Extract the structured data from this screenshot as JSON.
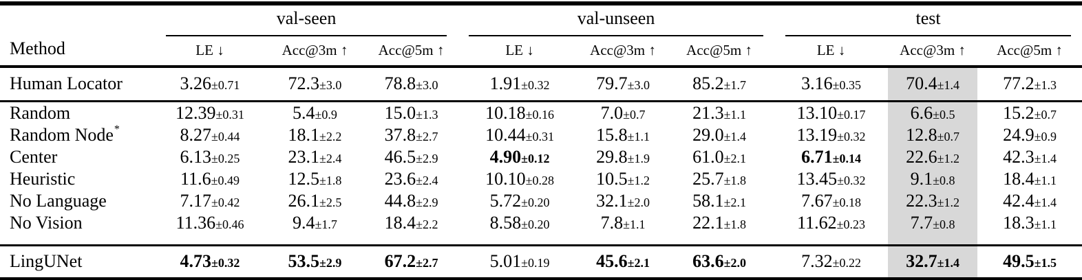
{
  "page": {
    "background_color": "#ffffff",
    "text_color": "#000000",
    "highlight_color": "#d8d8d8"
  },
  "table": {
    "method_header": "Method",
    "groups": [
      {
        "label": "val-seen",
        "columns": [
          "LE ↓",
          "Acc@3m ↑",
          "Acc@5m ↑"
        ]
      },
      {
        "label": "val-unseen",
        "columns": [
          "LE ↓",
          "Acc@3m ↑",
          "Acc@5m ↑"
        ]
      },
      {
        "label": "test",
        "columns": [
          "LE ↓",
          "Acc@3m ↑",
          "Acc@5m ↑"
        ]
      }
    ],
    "highlighted_column_index": 7,
    "sections": [
      {
        "rows": [
          {
            "method": "Human Locator",
            "sup": "",
            "cells": [
              {
                "v": "3.26",
                "pm": "±0.71",
                "bold": false
              },
              {
                "v": "72.3",
                "pm": "±3.0",
                "bold": false
              },
              {
                "v": "78.8",
                "pm": "±3.0",
                "bold": false
              },
              {
                "v": "1.91",
                "pm": "±0.32",
                "bold": false
              },
              {
                "v": "79.7",
                "pm": "±3.0",
                "bold": false
              },
              {
                "v": "85.2",
                "pm": "±1.7",
                "bold": false
              },
              {
                "v": "3.16",
                "pm": "±0.35",
                "bold": false
              },
              {
                "v": "70.4",
                "pm": "±1.4",
                "bold": false
              },
              {
                "v": "77.2",
                "pm": "±1.3",
                "bold": false
              }
            ]
          }
        ]
      },
      {
        "rows": [
          {
            "method": "Random",
            "sup": "",
            "cells": [
              {
                "v": "12.39",
                "pm": "±0.31",
                "bold": false
              },
              {
                "v": "5.4",
                "pm": "±0.9",
                "bold": false
              },
              {
                "v": "15.0",
                "pm": "±1.3",
                "bold": false
              },
              {
                "v": "10.18",
                "pm": "±0.16",
                "bold": false
              },
              {
                "v": "7.0",
                "pm": "±0.7",
                "bold": false
              },
              {
                "v": "21.3",
                "pm": "±1.1",
                "bold": false
              },
              {
                "v": "13.10",
                "pm": "±0.17",
                "bold": false
              },
              {
                "v": "6.6",
                "pm": "±0.5",
                "bold": false
              },
              {
                "v": "15.2",
                "pm": "±0.7",
                "bold": false
              }
            ]
          },
          {
            "method": "Random Node",
            "sup": "*",
            "cells": [
              {
                "v": "8.27",
                "pm": "±0.44",
                "bold": false
              },
              {
                "v": "18.1",
                "pm": "±2.2",
                "bold": false
              },
              {
                "v": "37.8",
                "pm": "±2.7",
                "bold": false
              },
              {
                "v": "10.44",
                "pm": "±0.31",
                "bold": false
              },
              {
                "v": "15.8",
                "pm": "±1.1",
                "bold": false
              },
              {
                "v": "29.0",
                "pm": "±1.4",
                "bold": false
              },
              {
                "v": "13.19",
                "pm": "±0.32",
                "bold": false
              },
              {
                "v": "12.8",
                "pm": "±0.7",
                "bold": false
              },
              {
                "v": "24.9",
                "pm": "±0.9",
                "bold": false
              }
            ]
          },
          {
            "method": "Center",
            "sup": "",
            "cells": [
              {
                "v": "6.13",
                "pm": "±0.25",
                "bold": false
              },
              {
                "v": "23.1",
                "pm": "±2.4",
                "bold": false
              },
              {
                "v": "46.5",
                "pm": "±2.9",
                "bold": false
              },
              {
                "v": "4.90",
                "pm": "±0.12",
                "bold": true
              },
              {
                "v": "29.8",
                "pm": "±1.9",
                "bold": false
              },
              {
                "v": "61.0",
                "pm": "±2.1",
                "bold": false
              },
              {
                "v": "6.71",
                "pm": "±0.14",
                "bold": true
              },
              {
                "v": "22.6",
                "pm": "±1.2",
                "bold": false
              },
              {
                "v": "42.3",
                "pm": "±1.4",
                "bold": false
              }
            ]
          },
          {
            "method": "Heuristic",
            "sup": "",
            "cells": [
              {
                "v": "11.6",
                "pm": "±0.49",
                "bold": false
              },
              {
                "v": "12.5",
                "pm": "±1.8",
                "bold": false
              },
              {
                "v": "23.6",
                "pm": "±2.4",
                "bold": false
              },
              {
                "v": "10.10",
                "pm": "±0.28",
                "bold": false
              },
              {
                "v": "10.5",
                "pm": "±1.2",
                "bold": false
              },
              {
                "v": "25.7",
                "pm": "±1.8",
                "bold": false
              },
              {
                "v": "13.45",
                "pm": "±0.32",
                "bold": false
              },
              {
                "v": "9.1",
                "pm": "±0.8",
                "bold": false
              },
              {
                "v": "18.4",
                "pm": "±1.1",
                "bold": false
              }
            ]
          },
          {
            "method": "No Language",
            "sup": "",
            "cells": [
              {
                "v": "7.17",
                "pm": "±0.42",
                "bold": false
              },
              {
                "v": "26.1",
                "pm": "±2.5",
                "bold": false
              },
              {
                "v": "44.8",
                "pm": "±2.9",
                "bold": false
              },
              {
                "v": "5.72",
                "pm": "±0.20",
                "bold": false
              },
              {
                "v": "32.1",
                "pm": "±2.0",
                "bold": false
              },
              {
                "v": "58.1",
                "pm": "±2.1",
                "bold": false
              },
              {
                "v": "7.67",
                "pm": "±0.18",
                "bold": false
              },
              {
                "v": "22.3",
                "pm": "±1.2",
                "bold": false
              },
              {
                "v": "42.4",
                "pm": "±1.4",
                "bold": false
              }
            ]
          },
          {
            "method": "No Vision",
            "sup": "",
            "cells": [
              {
                "v": "11.36",
                "pm": "±0.46",
                "bold": false
              },
              {
                "v": "9.4",
                "pm": "±1.7",
                "bold": false
              },
              {
                "v": "18.4",
                "pm": "±2.2",
                "bold": false
              },
              {
                "v": "8.58",
                "pm": "±0.20",
                "bold": false
              },
              {
                "v": "7.8",
                "pm": "±1.1",
                "bold": false
              },
              {
                "v": "22.1",
                "pm": "±1.8",
                "bold": false
              },
              {
                "v": "11.62",
                "pm": "±0.23",
                "bold": false
              },
              {
                "v": "7.7",
                "pm": "±0.8",
                "bold": false
              },
              {
                "v": "18.3",
                "pm": "±1.1",
                "bold": false
              }
            ]
          }
        ]
      },
      {
        "rows": [
          {
            "method": "LingUNet",
            "sup": "",
            "cells": [
              {
                "v": "4.73",
                "pm": "±0.32",
                "bold": true
              },
              {
                "v": "53.5",
                "pm": "±2.9",
                "bold": true
              },
              {
                "v": "67.2",
                "pm": "±2.7",
                "bold": true
              },
              {
                "v": "5.01",
                "pm": "±0.19",
                "bold": false
              },
              {
                "v": "45.6",
                "pm": "±2.1",
                "bold": true
              },
              {
                "v": "63.6",
                "pm": "±2.0",
                "bold": true
              },
              {
                "v": "7.32",
                "pm": "±0.22",
                "bold": false
              },
              {
                "v": "32.7",
                "pm": "±1.4",
                "bold": true
              },
              {
                "v": "49.5",
                "pm": "±1.5",
                "bold": true
              }
            ]
          }
        ]
      }
    ]
  }
}
